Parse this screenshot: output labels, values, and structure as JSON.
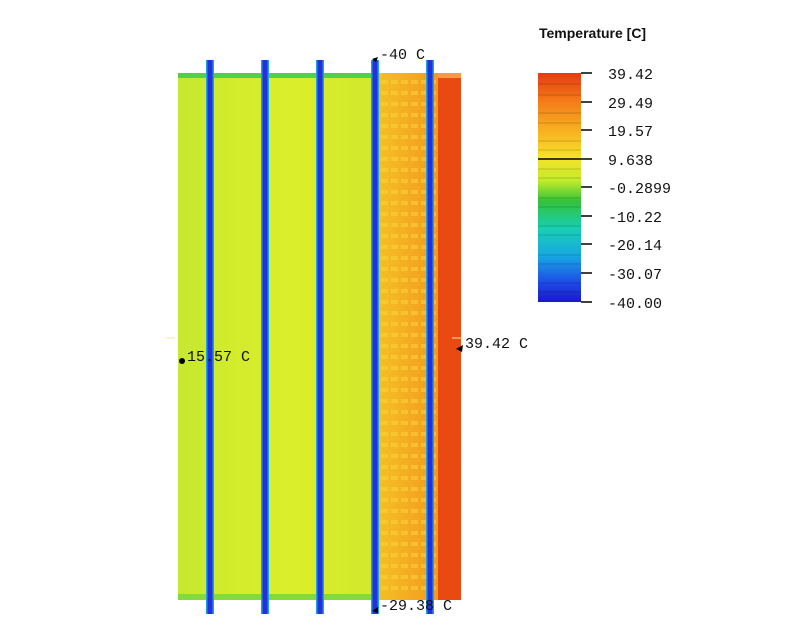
{
  "legend": {
    "title": "Temperature [C]",
    "ticks": [
      "39.42",
      "29.49",
      "19.57",
      "9.638",
      "-0.2899",
      "-10.22",
      "-20.14",
      "-30.07",
      "-40.00"
    ],
    "range": [
      -40.0,
      39.42
    ],
    "colors": [
      "#e63a12",
      "#f37a18",
      "#f8b020",
      "#f6e22a",
      "#c2ec2a",
      "#34c23a",
      "#18cfb4",
      "#18a7e3",
      "#1e47e6",
      "#1a18c7"
    ]
  },
  "probes": [
    {
      "label": "-40 C",
      "value": -40
    },
    {
      "label": "15.57 C",
      "value": 15.57
    },
    {
      "label": "39.42 C",
      "value": 39.42
    },
    {
      "label": "-29.38 C",
      "value": -29.38
    }
  ],
  "field": {
    "background_color": "#c9ea2c",
    "warm_zone_color": "#f6a825",
    "hot_strip_color": "#e84a12",
    "pipe_color": "#2530d8",
    "pipe_edge_color": "#1aa0e6"
  }
}
